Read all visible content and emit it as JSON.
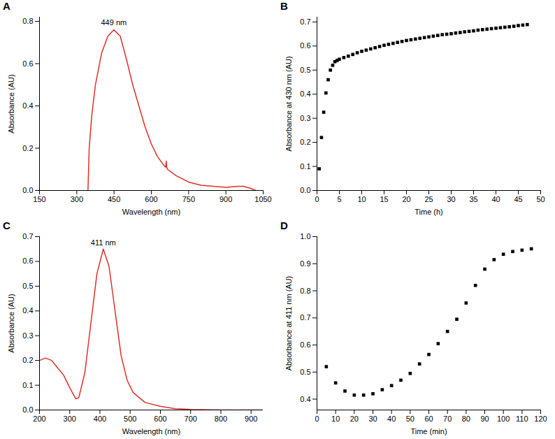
{
  "chart_data": [
    {
      "type": "line",
      "title": "A",
      "x_label": "Wavelength (nm)",
      "y_label": "Absorbance (AU)",
      "color": "#e0302a",
      "x": [
        345,
        350,
        360,
        375,
        400,
        425,
        449,
        475,
        500,
        525,
        550,
        575,
        600,
        625,
        650,
        658,
        660,
        662,
        665,
        700,
        750,
        800,
        850,
        900,
        950,
        970,
        1000,
        1020
      ],
      "values": [
        0,
        0.2,
        0.35,
        0.5,
        0.65,
        0.73,
        0.76,
        0.73,
        0.62,
        0.5,
        0.4,
        0.3,
        0.22,
        0.16,
        0.12,
        0.11,
        0.14,
        0.11,
        0.1,
        0.07,
        0.04,
        0.025,
        0.02,
        0.015,
        0.02,
        0.02,
        0.01,
        0
      ],
      "xlim": [
        150,
        1050
      ],
      "xticks": [
        150,
        300,
        450,
        600,
        750,
        900,
        1050
      ],
      "ylim": [
        0,
        0.82
      ],
      "yticks": [
        {
          "value": 0,
          "label": "0.0"
        },
        0.2,
        0.4,
        0.6,
        0.8
      ],
      "annotations": [
        {
          "text": "449 nm",
          "x": 449,
          "y": 0.795
        }
      ]
    },
    {
      "type": "scatter",
      "title": "B",
      "x_label": "Time (h)",
      "y_label": "Absorbance at 430 nm (AU)",
      "color": "#000000",
      "marker": "square",
      "x": [
        0.5,
        1,
        1.5,
        2,
        2.5,
        3,
        3.5,
        4,
        4.5,
        5,
        6,
        7,
        8,
        9,
        10,
        11,
        12,
        13,
        14,
        15,
        16,
        17,
        18,
        19,
        20,
        21,
        22,
        23,
        24,
        25,
        26,
        27,
        28,
        29,
        30,
        31,
        32,
        33,
        34,
        35,
        36,
        37,
        38,
        39,
        40,
        41,
        42,
        43,
        44,
        45,
        46,
        47
      ],
      "values": [
        0.09,
        0.22,
        0.325,
        0.405,
        0.46,
        0.5,
        0.52,
        0.535,
        0.54,
        0.545,
        0.552,
        0.558,
        0.565,
        0.572,
        0.578,
        0.583,
        0.588,
        0.593,
        0.598,
        0.603,
        0.607,
        0.611,
        0.615,
        0.619,
        0.623,
        0.626,
        0.629,
        0.632,
        0.635,
        0.638,
        0.641,
        0.644,
        0.647,
        0.649,
        0.651,
        0.654,
        0.656,
        0.659,
        0.661,
        0.663,
        0.666,
        0.668,
        0.67,
        0.672,
        0.674,
        0.676,
        0.678,
        0.68,
        0.682,
        0.685,
        0.687,
        0.689
      ],
      "xlim": [
        0,
        50
      ],
      "xticks": [
        0,
        5,
        10,
        15,
        20,
        25,
        30,
        35,
        40,
        45,
        50
      ],
      "ylim": [
        0,
        0.72
      ],
      "yticks": [
        {
          "value": 0,
          "label": "0.0"
        },
        0.1,
        0.2,
        0.3,
        0.4,
        0.5,
        0.6,
        0.7
      ]
    },
    {
      "type": "line",
      "title": "C",
      "x_label": "Wavelength (nm)",
      "y_label": "Absorbance (AU)",
      "color": "#e0302a",
      "x": [
        200,
        220,
        240,
        260,
        280,
        300,
        320,
        330,
        350,
        370,
        390,
        411,
        430,
        450,
        470,
        490,
        510,
        550,
        600,
        650,
        700,
        800,
        940
      ],
      "values": [
        0.2,
        0.21,
        0.2,
        0.17,
        0.14,
        0.09,
        0.045,
        0.05,
        0.15,
        0.35,
        0.55,
        0.65,
        0.58,
        0.4,
        0.22,
        0.12,
        0.07,
        0.03,
        0.015,
        0.005,
        0.002,
        0,
        0
      ],
      "xlim": [
        200,
        940
      ],
      "xticks": [
        200,
        300,
        400,
        500,
        600,
        700,
        800,
        900
      ],
      "ylim": [
        0,
        0.7
      ],
      "yticks": [
        {
          "value": 0,
          "label": "0.0"
        },
        0.1,
        0.2,
        0.3,
        0.4,
        0.5,
        0.6,
        0.7
      ],
      "annotations": [
        {
          "text": "411 nm",
          "x": 411,
          "y": 0.675
        }
      ]
    },
    {
      "type": "scatter",
      "title": "D",
      "x_label": "Time (min)",
      "y_label": "Absorbance at 411 nm (AU)",
      "color": "#000000",
      "marker": "square",
      "x": [
        5,
        10,
        15,
        20,
        25,
        30,
        35,
        40,
        45,
        50,
        55,
        60,
        65,
        70,
        75,
        80,
        85,
        90,
        95,
        100,
        105,
        110,
        115
      ],
      "values": [
        0.52,
        0.46,
        0.43,
        0.415,
        0.415,
        0.42,
        0.435,
        0.45,
        0.47,
        0.495,
        0.53,
        0.565,
        0.605,
        0.65,
        0.695,
        0.755,
        0.82,
        0.88,
        0.915,
        0.935,
        0.945,
        0.95,
        0.955
      ],
      "xlim": [
        0,
        120
      ],
      "xticks": [
        0,
        10,
        20,
        30,
        40,
        50,
        60,
        70,
        80,
        90,
        100,
        110,
        120
      ],
      "ylim": [
        0.36,
        1.0
      ],
      "yticks": [
        0.4,
        0.5,
        0.6,
        0.7,
        0.8,
        0.9,
        {
          "value": 1,
          "label": "1.0"
        }
      ]
    }
  ]
}
